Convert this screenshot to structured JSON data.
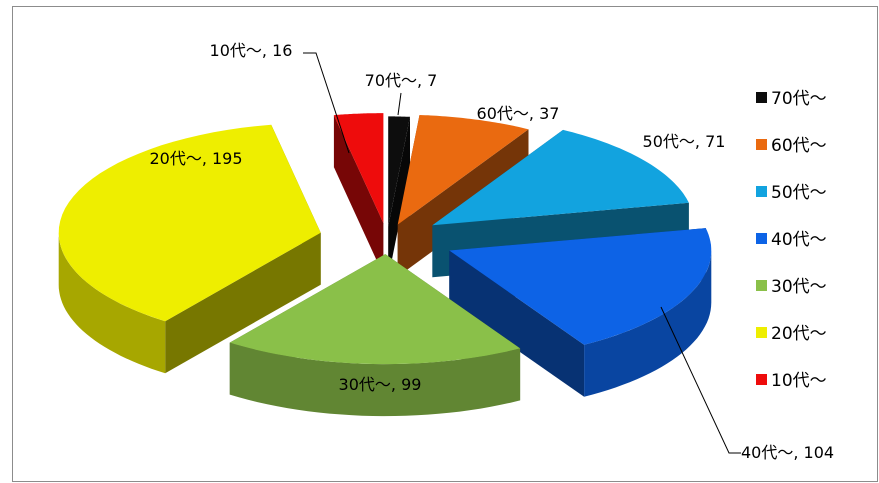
{
  "chart_data": {
    "type": "pie",
    "style": "3d-exploded",
    "title": "",
    "start_angle_deg": 90,
    "direction": "clockwise",
    "legend_position": "right",
    "series": [
      {
        "slices": [
          {
            "key": "s70",
            "name": "70代～",
            "value": 7,
            "label": "70代～, 7",
            "color": "#0d0d0d"
          },
          {
            "key": "s60",
            "name": "60代～",
            "value": 37,
            "label": "60代～, 37",
            "color": "#ea6a10"
          },
          {
            "key": "s50",
            "name": "50代～",
            "value": 71,
            "label": "50代～, 71",
            "color": "#12a3df"
          },
          {
            "key": "s40",
            "name": "40代～",
            "value": 104,
            "label": "40代～, 104",
            "color": "#0d63e6"
          },
          {
            "key": "s30",
            "name": "30代～",
            "value": 99,
            "label": "30代～, 99",
            "color": "#8ac049"
          },
          {
            "key": "s20",
            "name": "20代～",
            "value": 195,
            "label": "20代～, 195",
            "color": "#eeee00"
          },
          {
            "key": "s10",
            "name": "10代～",
            "value": 16,
            "label": "10代～, 16",
            "color": "#ee0c0c"
          }
        ]
      }
    ]
  }
}
